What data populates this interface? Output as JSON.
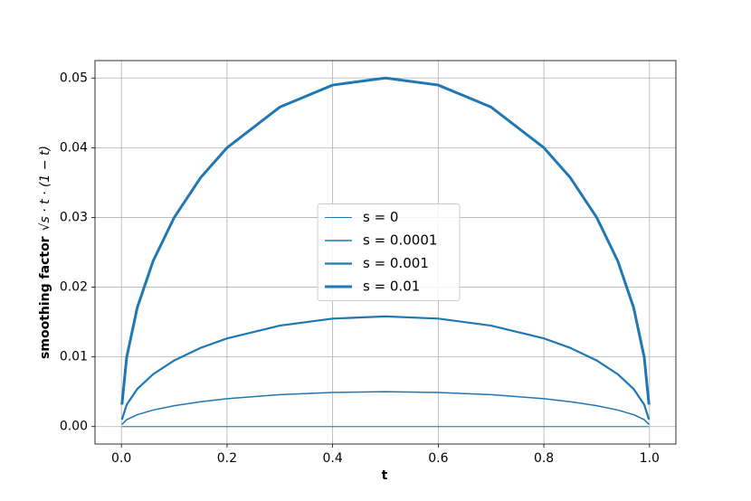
{
  "chart_data": {
    "type": "line",
    "xlabel": "t",
    "ylabel": "smoothing factor",
    "ylabel_formula": "√s · t · (1 − t)",
    "x": [
      0.001,
      0.01,
      0.03,
      0.06,
      0.1,
      0.15,
      0.2,
      0.3,
      0.4,
      0.5,
      0.6,
      0.7,
      0.8,
      0.85,
      0.9,
      0.94,
      0.97,
      0.99,
      0.999
    ],
    "series": [
      {
        "name": "s = 0",
        "color": "#1f77b4",
        "linewidth": 1,
        "values": [
          0,
          0,
          0,
          0,
          0,
          0,
          0,
          0,
          0,
          0,
          0,
          0,
          0,
          0,
          0,
          0,
          0,
          0,
          0
        ]
      },
      {
        "name": "s = 0.0001",
        "color": "#1f77b4",
        "linewidth": 1.5,
        "values": [
          0.000316,
          0.000995,
          0.001706,
          0.002375,
          0.003,
          0.003571,
          0.004,
          0.004583,
          0.004899,
          0.005,
          0.004899,
          0.004583,
          0.004,
          0.003571,
          0.003,
          0.002375,
          0.001706,
          0.000995,
          0.000316
        ]
      },
      {
        "name": "s = 0.001",
        "color": "#1f77b4",
        "linewidth": 2.2,
        "values": [
          0.001,
          0.003146,
          0.005395,
          0.00751,
          0.009487,
          0.01129,
          0.01265,
          0.01449,
          0.01549,
          0.01581,
          0.01549,
          0.01449,
          0.01265,
          0.01129,
          0.009487,
          0.00751,
          0.005395,
          0.003146,
          0.001
        ]
      },
      {
        "name": "s = 0.01",
        "color": "#1f77b4",
        "linewidth": 3,
        "values": [
          0.00316,
          0.00995,
          0.01706,
          0.02375,
          0.03,
          0.03571,
          0.04,
          0.04583,
          0.04899,
          0.05,
          0.04899,
          0.04583,
          0.04,
          0.03571,
          0.03,
          0.02375,
          0.01706,
          0.00995,
          0.00316
        ]
      }
    ],
    "xlim": [
      -0.05,
      1.05
    ],
    "ylim": [
      -0.0025,
      0.0525
    ],
    "xticks": [
      {
        "value": 0,
        "label": "0.0"
      },
      0.2,
      0.4,
      0.6,
      0.8,
      {
        "value": 1,
        "label": "1.0"
      }
    ],
    "yticks": [
      {
        "value": 0,
        "label": "0.00"
      },
      0.01,
      0.02,
      0.03,
      0.04,
      0.05
    ],
    "grid": true,
    "legend": "center"
  }
}
